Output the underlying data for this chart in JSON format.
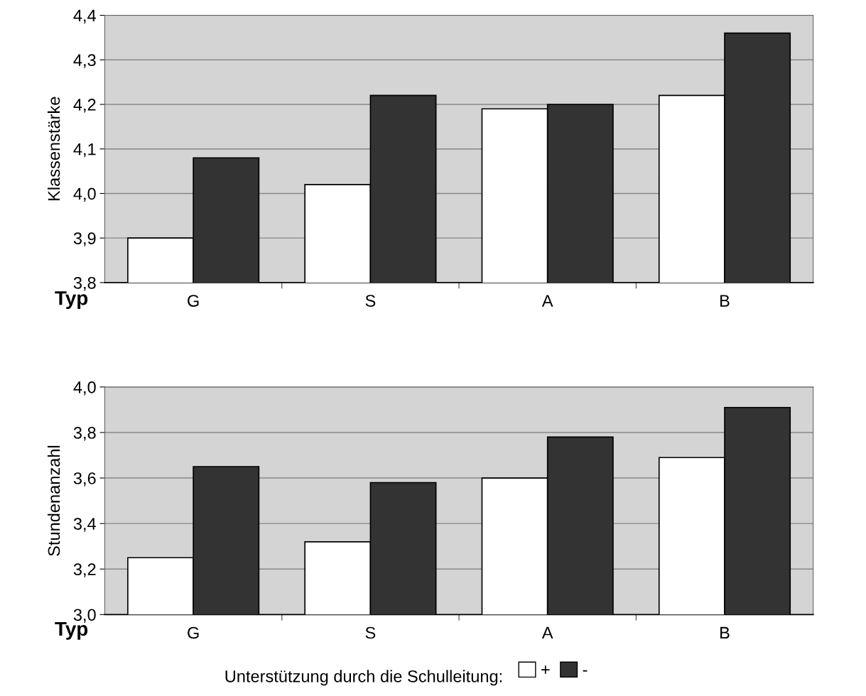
{
  "chart_data": [
    {
      "type": "bar",
      "ylabel": "Klassenstärke",
      "xlabel": "Typ",
      "categories": [
        "G",
        "S",
        "A",
        "B"
      ],
      "series": [
        {
          "color": "#ffffff",
          "values": [
            3.9,
            4.02,
            4.19,
            4.22
          ]
        },
        {
          "color": "#333333",
          "values": [
            4.08,
            4.22,
            4.2,
            4.36
          ]
        }
      ],
      "ylim": [
        3.8,
        4.4
      ],
      "yticks": [
        {
          "value": 3.8,
          "label": "3,8"
        },
        {
          "value": 3.9,
          "label": "3,9"
        },
        {
          "value": 4.0,
          "label": "4,0"
        },
        {
          "value": 4.1,
          "label": "4,1"
        },
        {
          "value": 4.2,
          "label": "4,2"
        },
        {
          "value": 4.3,
          "label": "4,3"
        },
        {
          "value": 4.4,
          "label": "4,4"
        }
      ],
      "grid": "y",
      "legend": false
    },
    {
      "type": "bar",
      "ylabel": "Stundenanzahl",
      "xlabel": "Typ",
      "categories": [
        "G",
        "S",
        "A",
        "B"
      ],
      "series": [
        {
          "name": "+",
          "color": "#ffffff",
          "values": [
            3.25,
            3.32,
            3.6,
            3.69
          ]
        },
        {
          "name": "-",
          "color": "#333333",
          "values": [
            3.65,
            3.58,
            3.78,
            3.91
          ]
        }
      ],
      "ylim": [
        3.0,
        4.0
      ],
      "yticks": [
        {
          "value": 3.0,
          "label": "3,0"
        },
        {
          "value": 3.2,
          "label": "3,2"
        },
        {
          "value": 3.4,
          "label": "3,4"
        },
        {
          "value": 3.6,
          "label": "3,6"
        },
        {
          "value": 3.8,
          "label": "3,8"
        },
        {
          "value": 4.0,
          "label": "4,0"
        }
      ],
      "grid": "y",
      "legend": "bottom",
      "legend_title": "Unterstützung durch die Schulleitung:"
    }
  ]
}
